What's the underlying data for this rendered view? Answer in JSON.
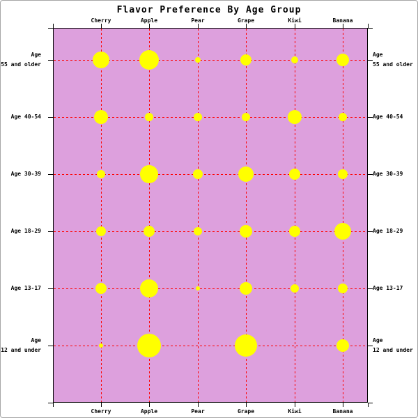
{
  "window": {
    "background": "#ffffff",
    "border_color": "#a6a6a6"
  },
  "chart_data": {
    "type": "scatter",
    "variant": "bubble",
    "title": "Flavor Preference By Age Group",
    "x_categories": [
      "Cherry",
      "Apple",
      "Pear",
      "Grape",
      "Kiwi",
      "Banana"
    ],
    "y_categories": [
      "Age 55 and older",
      "Age 40-54",
      "Age 30-39",
      "Age 18-29",
      "Age 13-17",
      "Age 12 and under"
    ],
    "y_label_lines": [
      [
        "Age",
        "55 and older"
      ],
      [
        "Age 40-54"
      ],
      [
        "Age 30-39"
      ],
      [
        "Age 18-29"
      ],
      [
        "Age 13-17"
      ],
      [
        "Age",
        "12 and under"
      ]
    ],
    "bubble_radius_px": [
      [
        12,
        14,
        4,
        8,
        5,
        9
      ],
      [
        10,
        6,
        6,
        6,
        10,
        6
      ],
      [
        6,
        13,
        7,
        11,
        8,
        7
      ],
      [
        7,
        8,
        6,
        9,
        8,
        12
      ],
      [
        8,
        13,
        3,
        9,
        6,
        7
      ],
      [
        3,
        17,
        0,
        16,
        0,
        9
      ]
    ],
    "legend": "none",
    "grid": "dotted, both axes, at every category line",
    "axis_labels_repeated": "x labels shown top and bottom; y labels shown left and right",
    "colors": {
      "plot_background": "#dda0dd",
      "bubble": "#ffff00",
      "grid": "#ff0000",
      "axis": "#000000",
      "text": "#000000"
    }
  }
}
